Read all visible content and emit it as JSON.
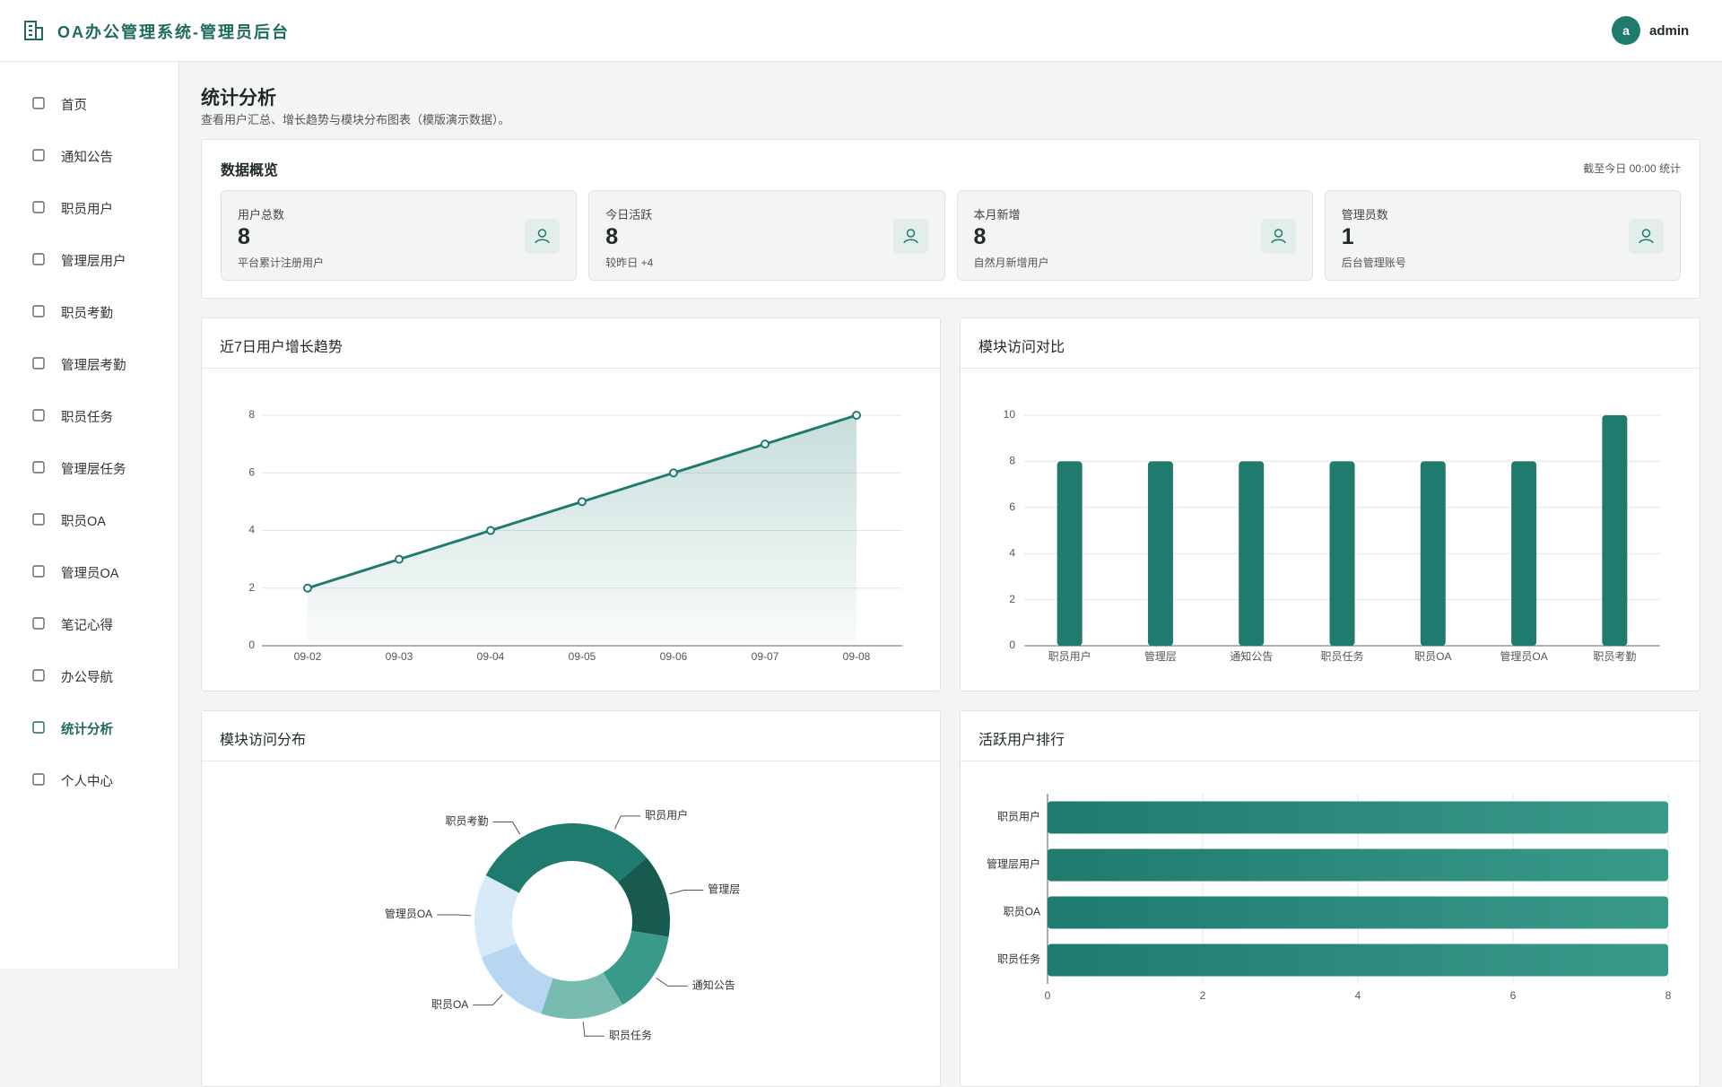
{
  "header": {
    "title": "OA办公管理系统-管理员后台",
    "avatar": "a",
    "user": "admin"
  },
  "sidebar": {
    "items": [
      "首页",
      "通知公告",
      "职员用户",
      "管理层用户",
      "职员考勤",
      "管理层考勤",
      "职员任务",
      "管理层任务",
      "职员OA",
      "管理员OA",
      "笔记心得",
      "办公导航",
      "统计分析",
      "个人中心"
    ],
    "active": 12
  },
  "page": {
    "title": "统计分析",
    "subtitle": "查看用户汇总、增长趋势与模块分布图表（模版演示数据）。"
  },
  "overview": {
    "title": "数据概览",
    "note": "截至今日 00:00 统计",
    "stats": [
      {
        "label": "用户总数",
        "value": "8",
        "note": "平台累计注册用户"
      },
      {
        "label": "今日活跃",
        "value": "8",
        "note": "较昨日 +4"
      },
      {
        "label": "本月新增",
        "value": "8",
        "note": "自然月新增用户"
      },
      {
        "label": "管理员数",
        "value": "1",
        "note": "后台管理账号"
      }
    ]
  },
  "chart_data": [
    {
      "type": "line",
      "title": "近7日用户增长趋势",
      "categories": [
        "09-02",
        "09-03",
        "09-04",
        "09-05",
        "09-06",
        "09-07",
        "09-08"
      ],
      "values": [
        2,
        3,
        4,
        5,
        6,
        7,
        8
      ],
      "color": "#1e7b6e",
      "ylim": [
        0,
        8
      ],
      "yticks": [
        0,
        2,
        4,
        6,
        8
      ],
      "grid": true
    },
    {
      "type": "bar",
      "title": "模块访问对比",
      "categories": [
        "职员用户",
        "管理层",
        "通知公告",
        "职员任务",
        "职员OA",
        "管理员OA",
        "职员考勤"
      ],
      "values": [
        8,
        8,
        8,
        8,
        8,
        8,
        10
      ],
      "color": "#1e7b6e",
      "ylim": [
        0,
        10
      ],
      "yticks": [
        0,
        2,
        4,
        6,
        8,
        10
      ],
      "grid": true
    },
    {
      "type": "pie",
      "title": "模块访问分布",
      "categories": [
        "职员用户",
        "管理层",
        "通知公告",
        "职员任务",
        "职员OA",
        "管理员OA",
        "职员考勤"
      ],
      "values": [
        8,
        8,
        8,
        8,
        8,
        8,
        10
      ],
      "colors": [
        "#1e7b6e",
        "#165a50",
        "#3a9a8a",
        "#78bcb0",
        "#b6d6f2",
        "#d8e9f8",
        "#1e7b6e"
      ]
    },
    {
      "type": "hbar",
      "title": "活跃用户排行",
      "categories": [
        "职员用户",
        "管理层用户",
        "职员OA",
        "职员任务"
      ],
      "values": [
        8,
        8,
        8,
        8
      ],
      "color": "#1e7b6e",
      "xlim": [
        0,
        8
      ],
      "xticks": [
        0,
        2,
        4,
        6,
        8
      ],
      "grid": true
    }
  ]
}
